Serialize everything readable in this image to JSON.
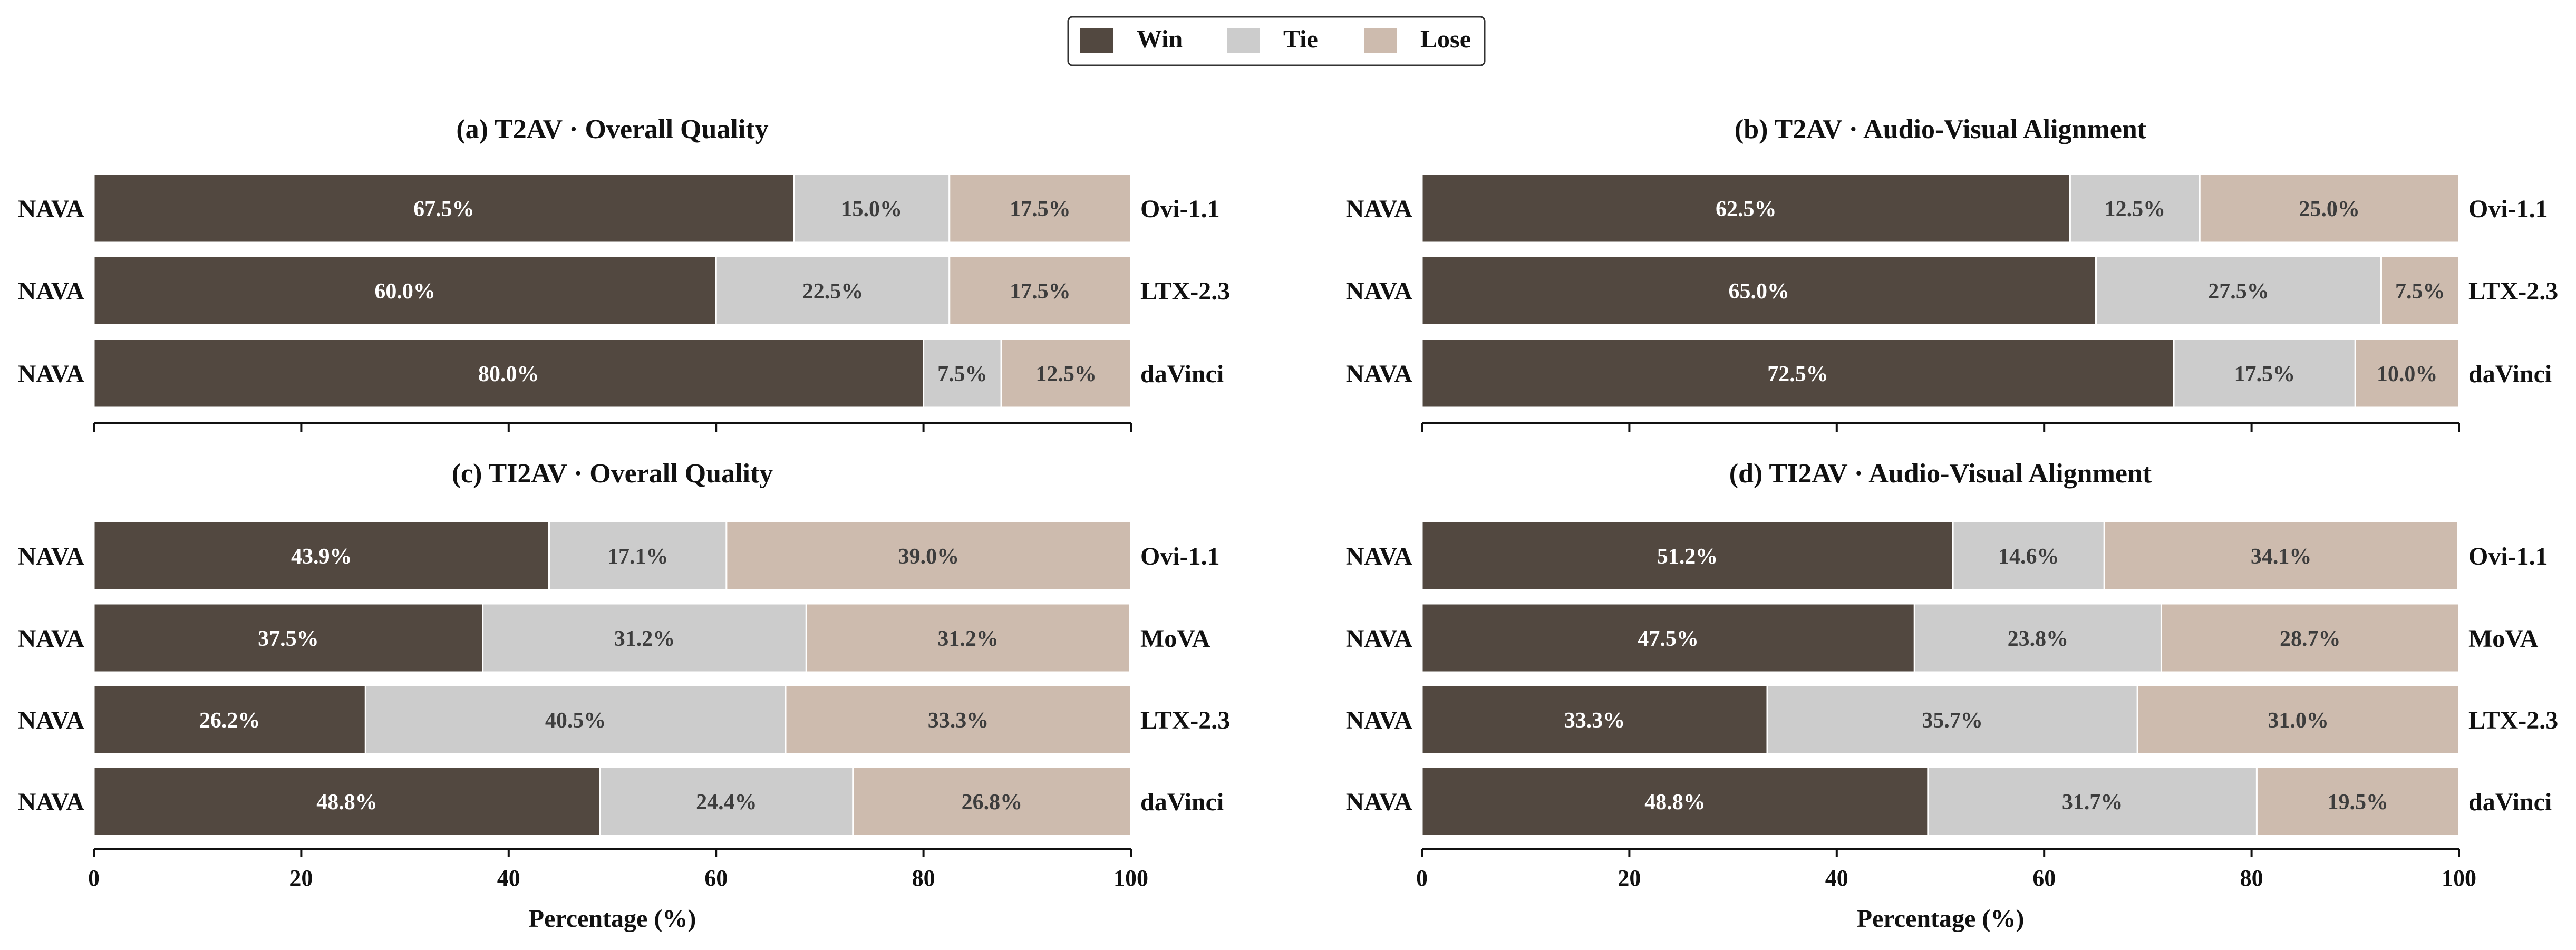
{
  "legend": {
    "placement": "top-center",
    "items": [
      {
        "label": "Win",
        "color": "#524840"
      },
      {
        "label": "Tie",
        "color": "#cccccc"
      },
      {
        "label": "Lose",
        "color": "#cdbbae"
      }
    ]
  },
  "colors": {
    "win": "#524840",
    "tie": "#cccccc",
    "lose": "#cdbbae",
    "win_text": "#ffffff",
    "other_text": "#3d3d3d"
  },
  "chart_data": [
    {
      "type": "bar",
      "orientation": "horizontal-stacked",
      "title": "(a) T2AV · Overall Quality",
      "xlabel": "",
      "xlim": [
        0,
        100
      ],
      "xticks": [],
      "left_labels": [
        "NAVA",
        "NAVA",
        "NAVA"
      ],
      "categories": [
        "Ovi-1.1",
        "LTX-2.3",
        "daVinci"
      ],
      "series": [
        {
          "name": "Win",
          "values": [
            67.5,
            60.0,
            80.0
          ],
          "labels": [
            "67.5%",
            "60.0%",
            "80.0%"
          ]
        },
        {
          "name": "Tie",
          "values": [
            15.0,
            22.5,
            7.5
          ],
          "labels": [
            "15.0%",
            "22.5%",
            "7.5%"
          ]
        },
        {
          "name": "Lose",
          "values": [
            17.5,
            17.5,
            12.5
          ],
          "labels": [
            "17.5%",
            "17.5%",
            "12.5%"
          ]
        }
      ]
    },
    {
      "type": "bar",
      "orientation": "horizontal-stacked",
      "title": "(b) T2AV · Audio-Visual Alignment",
      "xlabel": "",
      "xlim": [
        0,
        100
      ],
      "xticks": [],
      "left_labels": [
        "NAVA",
        "NAVA",
        "NAVA"
      ],
      "categories": [
        "Ovi-1.1",
        "LTX-2.3",
        "daVinci"
      ],
      "series": [
        {
          "name": "Win",
          "values": [
            62.5,
            65.0,
            72.5
          ],
          "labels": [
            "62.5%",
            "65.0%",
            "72.5%"
          ]
        },
        {
          "name": "Tie",
          "values": [
            12.5,
            27.5,
            17.5
          ],
          "labels": [
            "12.5%",
            "27.5%",
            "17.5%"
          ]
        },
        {
          "name": "Lose",
          "values": [
            25.0,
            7.5,
            10.0
          ],
          "labels": [
            "25.0%",
            "7.5%",
            "10.0%"
          ]
        }
      ]
    },
    {
      "type": "bar",
      "orientation": "horizontal-stacked",
      "title": "(c) TI2AV · Overall Quality",
      "xlabel": "Percentage (%)",
      "xlim": [
        0,
        100
      ],
      "xticks": [
        "0",
        "20",
        "40",
        "60",
        "80",
        "100"
      ],
      "left_labels": [
        "NAVA",
        "NAVA",
        "NAVA",
        "NAVA"
      ],
      "categories": [
        "Ovi-1.1",
        "MoVA",
        "LTX-2.3",
        "daVinci"
      ],
      "series": [
        {
          "name": "Win",
          "values": [
            43.9,
            37.5,
            26.2,
            48.8
          ],
          "labels": [
            "43.9%",
            "37.5%",
            "26.2%",
            "48.8%"
          ]
        },
        {
          "name": "Tie",
          "values": [
            17.1,
            31.2,
            40.5,
            24.4
          ],
          "labels": [
            "17.1%",
            "31.2%",
            "40.5%",
            "24.4%"
          ]
        },
        {
          "name": "Lose",
          "values": [
            39.0,
            31.2,
            33.3,
            26.8
          ],
          "labels": [
            "39.0%",
            "31.2%",
            "33.3%",
            "26.8%"
          ]
        }
      ]
    },
    {
      "type": "bar",
      "orientation": "horizontal-stacked",
      "title": "(d) TI2AV · Audio-Visual Alignment",
      "xlabel": "Percentage (%)",
      "xlim": [
        0,
        100
      ],
      "xticks": [
        "0",
        "20",
        "40",
        "60",
        "80",
        "100"
      ],
      "left_labels": [
        "NAVA",
        "NAVA",
        "NAVA",
        "NAVA"
      ],
      "categories": [
        "Ovi-1.1",
        "MoVA",
        "LTX-2.3",
        "daVinci"
      ],
      "series": [
        {
          "name": "Win",
          "values": [
            51.2,
            47.5,
            33.3,
            48.8
          ],
          "labels": [
            "51.2%",
            "47.5%",
            "33.3%",
            "48.8%"
          ]
        },
        {
          "name": "Tie",
          "values": [
            14.6,
            23.8,
            35.7,
            31.7
          ],
          "labels": [
            "14.6%",
            "23.8%",
            "35.7%",
            "31.7%"
          ]
        },
        {
          "name": "Lose",
          "values": [
            34.1,
            28.7,
            31.0,
            19.5
          ],
          "labels": [
            "34.1%",
            "28.7%",
            "31.0%",
            "19.5%"
          ]
        }
      ]
    }
  ]
}
